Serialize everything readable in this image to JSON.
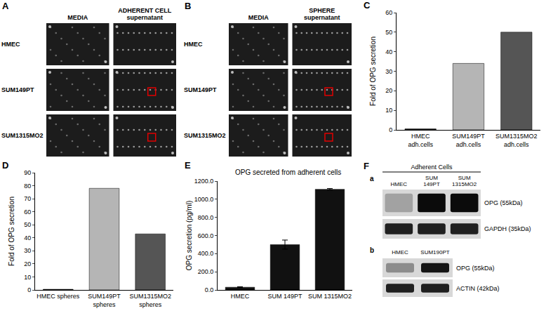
{
  "panels": {
    "A": {
      "letter": "A",
      "columns": [
        "MEDIA",
        "ADHERENT CELL supernatant"
      ],
      "rows": [
        "HMEC",
        "SUM149PT",
        "SUM1315MO2"
      ]
    },
    "B": {
      "letter": "B",
      "columns": [
        "MEDIA",
        "SPHERE supernatant"
      ],
      "rows": [
        "HMEC",
        "SUM149PT",
        "SUM1315MO2"
      ]
    },
    "F": {
      "letter": "F",
      "a": {
        "label": "a",
        "header": "Adherent Cells",
        "lanes": [
          "HMEC",
          "SUM 149PT",
          "SUM 1315MO2"
        ],
        "bands": [
          "OPG (55kDa)",
          "GAPDH (35kDa)"
        ]
      },
      "b": {
        "label": "b",
        "lanes": [
          "HMEC",
          "SUM190PT"
        ],
        "bands": [
          "OPG (55kDa)",
          "ACTIN (42kDa)"
        ]
      }
    }
  },
  "chart_data": [
    {
      "letter": "C",
      "type": "bar",
      "categories": [
        "HMEC adh.cells",
        "SUM149PT adh.cells",
        "SUM1315MO2 adh.cells"
      ],
      "values": [
        0.5,
        34,
        50
      ],
      "colors": [
        "#222222",
        "#b5b5b5",
        "#555555"
      ],
      "y_label": "Fold of OPG secretion",
      "ylim": [
        0,
        60
      ],
      "yticks": [
        0,
        10,
        20,
        30,
        40,
        50,
        60
      ],
      "grid": false
    },
    {
      "letter": "D",
      "type": "bar",
      "categories": [
        "HMEC spheres",
        "SUM149PT spheres",
        "SUM1315MO2 spheres"
      ],
      "values": [
        0.5,
        78,
        43
      ],
      "colors": [
        "#222222",
        "#b5b5b5",
        "#555555"
      ],
      "y_label": "Fold of OPG secretion",
      "ylim": [
        0,
        90
      ],
      "yticks": [
        0,
        10,
        20,
        30,
        40,
        50,
        60,
        70,
        80,
        90
      ],
      "grid": false
    },
    {
      "letter": "E",
      "type": "bar",
      "title": "OPG secreted from adherent cells",
      "categories": [
        "HMEC",
        "SUM 149PT",
        "SUM 1315MO2"
      ],
      "values": [
        30,
        500,
        1110
      ],
      "error": [
        5,
        50,
        8
      ],
      "color": "#111111",
      "y_label": "OPG secretion (pg/ml)",
      "ylim": [
        0,
        1200
      ],
      "yticks": [
        {
          "value": 0,
          "label": "0.0"
        },
        {
          "value": 200,
          "label": "200.0"
        },
        {
          "value": 400,
          "label": "400.0"
        },
        {
          "value": 600,
          "label": "600.0"
        },
        {
          "value": 800,
          "label": "800.0"
        },
        {
          "value": 1000,
          "label": "1000.0"
        },
        {
          "value": 1200,
          "label": "1200.0"
        }
      ],
      "grid": false
    }
  ]
}
